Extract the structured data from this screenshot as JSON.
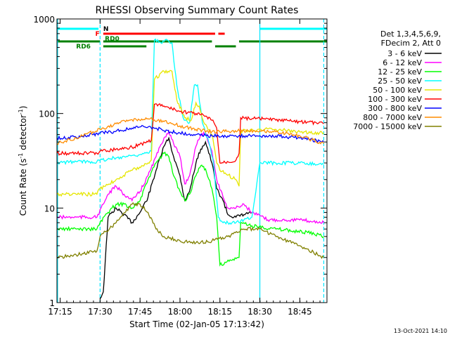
{
  "chart_data": {
    "type": "line",
    "title": "RHESSI Observing Summary Count Rates",
    "xlabel": "Start Time (02-Jan-05 17:13:42)",
    "ylabel_main": "Count Rate (s",
    "ylabel_sup1": "-1",
    "ylabel_mid": " detector",
    "ylabel_sup2": "-1",
    "ylabel_end": ")",
    "yscale": "log",
    "ylim": [
      1,
      1000
    ],
    "xlim_minutes": [
      17.23,
      18.92
    ],
    "xticks": [
      {
        "m": 17.25,
        "label": "17:15"
      },
      {
        "m": 17.5,
        "label": "17:30"
      },
      {
        "m": 17.75,
        "label": "17:45"
      },
      {
        "m": 18.0,
        "label": "18:00"
      },
      {
        "m": 18.25,
        "label": "18:15"
      },
      {
        "m": 18.5,
        "label": "18:30"
      },
      {
        "m": 18.75,
        "label": "18:45"
      }
    ],
    "yticks": [
      {
        "v": 1,
        "label": "1"
      },
      {
        "v": 10,
        "label": "10"
      },
      {
        "v": 100,
        "label": "100"
      },
      {
        "v": 1000,
        "label": "1000"
      }
    ],
    "legend_head1": "Det 1,3,4,5,6,9,",
    "legend_head2": "FDecim 2, Att 0",
    "series": [
      {
        "name": "3 - 6 keV",
        "color": "#000000",
        "points": [
          [
            17.5,
            1.1
          ],
          [
            17.52,
            1.3
          ],
          [
            17.55,
            8
          ],
          [
            17.6,
            10
          ],
          [
            17.65,
            8.5
          ],
          [
            17.7,
            7
          ],
          [
            17.75,
            9
          ],
          [
            17.8,
            13
          ],
          [
            17.85,
            25
          ],
          [
            17.9,
            45
          ],
          [
            17.93,
            55
          ],
          [
            17.96,
            35
          ],
          [
            18.0,
            22
          ],
          [
            18.03,
            12
          ],
          [
            18.06,
            15
          ],
          [
            18.1,
            30
          ],
          [
            18.13,
            42
          ],
          [
            18.16,
            50
          ],
          [
            18.2,
            30
          ],
          [
            18.23,
            16
          ],
          [
            18.27,
            12
          ],
          [
            18.3,
            8.5
          ],
          [
            18.35,
            8
          ],
          [
            18.4,
            8.5
          ],
          [
            18.45,
            9
          ]
        ]
      },
      {
        "name": "6 - 12 keV",
        "color": "#ff00ff",
        "points": [
          [
            17.23,
            8
          ],
          [
            17.35,
            8
          ],
          [
            17.48,
            8
          ],
          [
            17.52,
            11
          ],
          [
            17.55,
            14
          ],
          [
            17.6,
            17
          ],
          [
            17.65,
            14
          ],
          [
            17.7,
            12
          ],
          [
            17.75,
            15
          ],
          [
            17.8,
            22
          ],
          [
            17.85,
            35
          ],
          [
            17.9,
            55
          ],
          [
            17.93,
            65
          ],
          [
            17.96,
            48
          ],
          [
            18.0,
            35
          ],
          [
            18.03,
            18
          ],
          [
            18.06,
            22
          ],
          [
            18.1,
            45
          ],
          [
            18.13,
            60
          ],
          [
            18.16,
            62
          ],
          [
            18.2,
            40
          ],
          [
            18.23,
            20
          ],
          [
            18.27,
            13
          ],
          [
            18.3,
            10
          ],
          [
            18.35,
            10
          ],
          [
            18.4,
            11
          ],
          [
            18.45,
            9
          ],
          [
            18.55,
            7.5
          ],
          [
            18.75,
            7.5
          ],
          [
            18.9,
            7
          ]
        ]
      },
      {
        "name": "12 - 25 keV",
        "color": "#00ff00",
        "points": [
          [
            17.23,
            6
          ],
          [
            17.35,
            6
          ],
          [
            17.48,
            6
          ],
          [
            17.5,
            7
          ],
          [
            17.55,
            9
          ],
          [
            17.6,
            11
          ],
          [
            17.65,
            11
          ],
          [
            17.7,
            10
          ],
          [
            17.75,
            12
          ],
          [
            17.8,
            20
          ],
          [
            17.85,
            30
          ],
          [
            17.9,
            38
          ],
          [
            17.93,
            35
          ],
          [
            17.96,
            22
          ],
          [
            18.0,
            15
          ],
          [
            18.03,
            12
          ],
          [
            18.06,
            14
          ],
          [
            18.1,
            22
          ],
          [
            18.13,
            28
          ],
          [
            18.16,
            26
          ],
          [
            18.2,
            16
          ],
          [
            18.23,
            8
          ],
          [
            18.25,
            2.5
          ],
          [
            18.32,
            2.8
          ],
          [
            18.37,
            3
          ],
          [
            18.38,
            7
          ],
          [
            18.45,
            6.5
          ],
          [
            18.6,
            6
          ],
          [
            18.8,
            5.5
          ],
          [
            18.9,
            5
          ]
        ]
      },
      {
        "name": "25 - 50 keV",
        "color": "#00ffff",
        "points": [
          [
            17.23,
            30
          ],
          [
            17.35,
            31
          ],
          [
            17.48,
            31
          ],
          [
            17.5,
            32
          ],
          [
            17.6,
            34
          ],
          [
            17.7,
            36
          ],
          [
            17.8,
            38
          ],
          [
            17.82,
            40
          ],
          [
            17.84,
            600
          ],
          [
            17.88,
            560
          ],
          [
            17.92,
            600
          ],
          [
            17.95,
            560
          ],
          [
            17.98,
            200
          ],
          [
            18.02,
            90
          ],
          [
            18.06,
            80
          ],
          [
            18.09,
            200
          ],
          [
            18.11,
            200
          ],
          [
            18.14,
            80
          ],
          [
            18.18,
            50
          ],
          [
            18.21,
            30
          ],
          [
            18.24,
            8
          ],
          [
            18.27,
            7
          ],
          [
            18.3,
            7
          ],
          [
            18.35,
            7
          ],
          [
            18.4,
            7.5
          ],
          [
            18.45,
            8
          ],
          [
            18.5,
            30
          ],
          [
            18.6,
            30
          ],
          [
            18.75,
            30
          ],
          [
            18.9,
            29
          ]
        ]
      },
      {
        "name": "50 - 100 keV",
        "color": "#e6e600",
        "points": [
          [
            17.23,
            14
          ],
          [
            17.35,
            14
          ],
          [
            17.48,
            14
          ],
          [
            17.5,
            16
          ],
          [
            17.6,
            20
          ],
          [
            17.7,
            25
          ],
          [
            17.8,
            30
          ],
          [
            17.82,
            32
          ],
          [
            17.84,
            230
          ],
          [
            17.9,
            280
          ],
          [
            17.95,
            280
          ],
          [
            17.98,
            140
          ],
          [
            18.03,
            90
          ],
          [
            18.07,
            85
          ],
          [
            18.1,
            130
          ],
          [
            18.12,
            120
          ],
          [
            18.15,
            80
          ],
          [
            18.2,
            60
          ],
          [
            18.23,
            30
          ],
          [
            18.25,
            25
          ],
          [
            18.35,
            20
          ],
          [
            18.37,
            17
          ],
          [
            18.38,
            65
          ],
          [
            18.5,
            68
          ],
          [
            18.6,
            68
          ],
          [
            18.75,
            64
          ],
          [
            18.9,
            62
          ]
        ]
      },
      {
        "name": "100 - 300 keV",
        "color": "#ff0000",
        "points": [
          [
            17.23,
            38
          ],
          [
            17.35,
            38
          ],
          [
            17.48,
            38
          ],
          [
            17.5,
            40
          ],
          [
            17.6,
            42
          ],
          [
            17.7,
            44
          ],
          [
            17.8,
            50
          ],
          [
            17.82,
            52
          ],
          [
            17.84,
            125
          ],
          [
            17.9,
            120
          ],
          [
            17.95,
            112
          ],
          [
            18.0,
            105
          ],
          [
            18.1,
            100
          ],
          [
            18.15,
            95
          ],
          [
            18.2,
            85
          ],
          [
            18.23,
            70
          ],
          [
            18.25,
            30
          ],
          [
            18.35,
            32
          ],
          [
            18.37,
            38
          ],
          [
            18.38,
            90
          ],
          [
            18.5,
            88
          ],
          [
            18.6,
            85
          ],
          [
            18.75,
            82
          ],
          [
            18.9,
            78
          ]
        ]
      },
      {
        "name": "300 - 800 keV",
        "color": "#0000ff",
        "points": [
          [
            17.23,
            55
          ],
          [
            17.35,
            56
          ],
          [
            17.45,
            60
          ],
          [
            17.5,
            62
          ],
          [
            17.6,
            65
          ],
          [
            17.7,
            70
          ],
          [
            17.75,
            72
          ],
          [
            17.8,
            72
          ],
          [
            17.85,
            70
          ],
          [
            17.9,
            66
          ],
          [
            18.0,
            62
          ],
          [
            18.1,
            60
          ],
          [
            18.2,
            58
          ],
          [
            18.3,
            58
          ],
          [
            18.4,
            58
          ],
          [
            18.5,
            58
          ],
          [
            18.6,
            58
          ],
          [
            18.75,
            55
          ],
          [
            18.9,
            50
          ]
        ]
      },
      {
        "name": "800 - 7000 keV",
        "color": "#ff8c00",
        "points": [
          [
            17.23,
            48
          ],
          [
            17.35,
            55
          ],
          [
            17.5,
            68
          ],
          [
            17.6,
            78
          ],
          [
            17.7,
            86
          ],
          [
            17.8,
            88
          ],
          [
            17.9,
            82
          ],
          [
            18.0,
            74
          ],
          [
            18.1,
            68
          ],
          [
            18.2,
            64
          ],
          [
            18.3,
            65
          ],
          [
            18.4,
            66
          ],
          [
            18.5,
            66
          ],
          [
            18.6,
            64
          ],
          [
            18.75,
            58
          ],
          [
            18.9,
            48
          ]
        ]
      },
      {
        "name": "7000 - 15000 keV",
        "color": "#808000",
        "points": [
          [
            17.23,
            3
          ],
          [
            17.35,
            3.2
          ],
          [
            17.48,
            3.5
          ],
          [
            17.5,
            5
          ],
          [
            17.6,
            7
          ],
          [
            17.7,
            11
          ],
          [
            17.75,
            11
          ],
          [
            17.8,
            9
          ],
          [
            17.85,
            6
          ],
          [
            17.9,
            5
          ],
          [
            18.0,
            4.5
          ],
          [
            18.1,
            4.3
          ],
          [
            18.2,
            4.5
          ],
          [
            18.3,
            5
          ],
          [
            18.4,
            6
          ],
          [
            18.5,
            6
          ],
          [
            18.6,
            5
          ],
          [
            18.75,
            4
          ],
          [
            18.9,
            3
          ]
        ]
      }
    ],
    "flag_labels": {
      "n": "N",
      "f": "F",
      "rd0": "RD0",
      "rd6": "RD6"
    }
  },
  "footer_date": "13-Oct-2021 14:10"
}
